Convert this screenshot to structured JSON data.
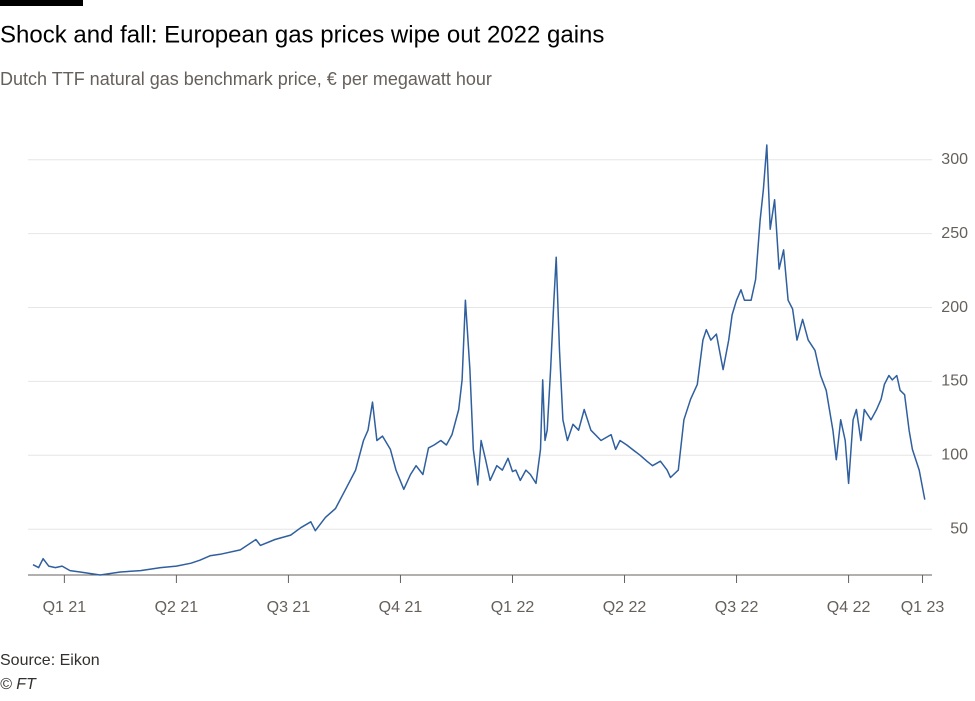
{
  "chart_data": {
    "type": "line",
    "title": "Shock and fall: European gas prices wipe out 2022 gains",
    "subtitle": "Dutch TTF natural gas benchmark price, € per megawatt hour",
    "source": "Source: Eikon",
    "credit": "© FT",
    "grid": true,
    "xlim": [
      -0.28,
      7.7
    ],
    "xticks": [
      {
        "value": 0,
        "label": "Q1 21"
      },
      {
        "value": 1,
        "label": "Q2 21"
      },
      {
        "value": 2,
        "label": "Q3 21"
      },
      {
        "value": 3,
        "label": "Q4 21"
      },
      {
        "value": 4,
        "label": "Q1 22"
      },
      {
        "value": 5,
        "label": "Q2 22"
      },
      {
        "value": 6,
        "label": "Q3 22"
      },
      {
        "value": 7,
        "label": "Q4 22"
      },
      {
        "value": 7.66,
        "label": "Q1 23"
      }
    ],
    "ylim": [
      19,
      310
    ],
    "yticks": [
      50,
      100,
      150,
      200,
      250,
      300
    ],
    "x": [
      -0.28,
      -0.23,
      -0.19,
      -0.14,
      -0.08,
      -0.02,
      0.05,
      0.14,
      0.23,
      0.32,
      0.41,
      0.5,
      0.68,
      0.86,
      1.0,
      1.13,
      1.21,
      1.3,
      1.39,
      1.57,
      1.71,
      1.75,
      1.88,
      2.02,
      2.11,
      2.2,
      2.24,
      2.33,
      2.42,
      2.51,
      2.6,
      2.67,
      2.71,
      2.75,
      2.79,
      2.84,
      2.91,
      2.96,
      3.03,
      3.09,
      3.14,
      3.2,
      3.25,
      3.3,
      3.36,
      3.41,
      3.46,
      3.52,
      3.55,
      3.58,
      3.62,
      3.65,
      3.69,
      3.72,
      3.76,
      3.8,
      3.86,
      3.91,
      3.96,
      4.0,
      4.03,
      4.07,
      4.12,
      4.16,
      4.21,
      4.25,
      4.27,
      4.29,
      4.31,
      4.34,
      4.37,
      4.39,
      4.42,
      4.45,
      4.49,
      4.54,
      4.59,
      4.64,
      4.7,
      4.79,
      4.88,
      4.92,
      4.96,
      5.02,
      5.07,
      5.14,
      5.2,
      5.25,
      5.32,
      5.38,
      5.41,
      5.48,
      5.53,
      5.59,
      5.65,
      5.7,
      5.73,
      5.77,
      5.82,
      5.88,
      5.93,
      5.96,
      6.0,
      6.04,
      6.07,
      6.13,
      6.17,
      6.21,
      6.24,
      6.27,
      6.3,
      6.34,
      6.38,
      6.42,
      6.46,
      6.5,
      6.54,
      6.59,
      6.64,
      6.7,
      6.75,
      6.8,
      6.86,
      6.89,
      6.93,
      6.97,
      7.0,
      7.04,
      7.07,
      7.11,
      7.14,
      7.2,
      7.25,
      7.29,
      7.32,
      7.36,
      7.39,
      7.43,
      7.46,
      7.5,
      7.54,
      7.57,
      7.63,
      7.68
    ],
    "series": [
      {
        "color": "#2f5f9e",
        "values": [
          26,
          24,
          30,
          25,
          24,
          25,
          22,
          21,
          20,
          19,
          20,
          21,
          22,
          24,
          25,
          27,
          29,
          32,
          33,
          36,
          43,
          39,
          43,
          46,
          51,
          55,
          49,
          58,
          64,
          77,
          90,
          110,
          117,
          136,
          110,
          113,
          104,
          90,
          77,
          87,
          93,
          87,
          105,
          107,
          110,
          107,
          114,
          131,
          151,
          205,
          158,
          104,
          80,
          110,
          97,
          83,
          93,
          90,
          98,
          89,
          90,
          83,
          90,
          87,
          81,
          104,
          151,
          110,
          117,
          158,
          205,
          234,
          171,
          124,
          110,
          121,
          117,
          131,
          117,
          110,
          114,
          104,
          110,
          107,
          104,
          100,
          96,
          93,
          96,
          90,
          85,
          90,
          124,
          138,
          148,
          178,
          185,
          178,
          182,
          158,
          178,
          195,
          205,
          212,
          205,
          205,
          219,
          259,
          280,
          310,
          253,
          273,
          226,
          239,
          205,
          199,
          178,
          192,
          178,
          171,
          154,
          144,
          117,
          97,
          124,
          110,
          81,
          124,
          131,
          110,
          131,
          124,
          131,
          138,
          148,
          154,
          151,
          154,
          144,
          141,
          117,
          104,
          90,
          70
        ]
      }
    ]
  }
}
